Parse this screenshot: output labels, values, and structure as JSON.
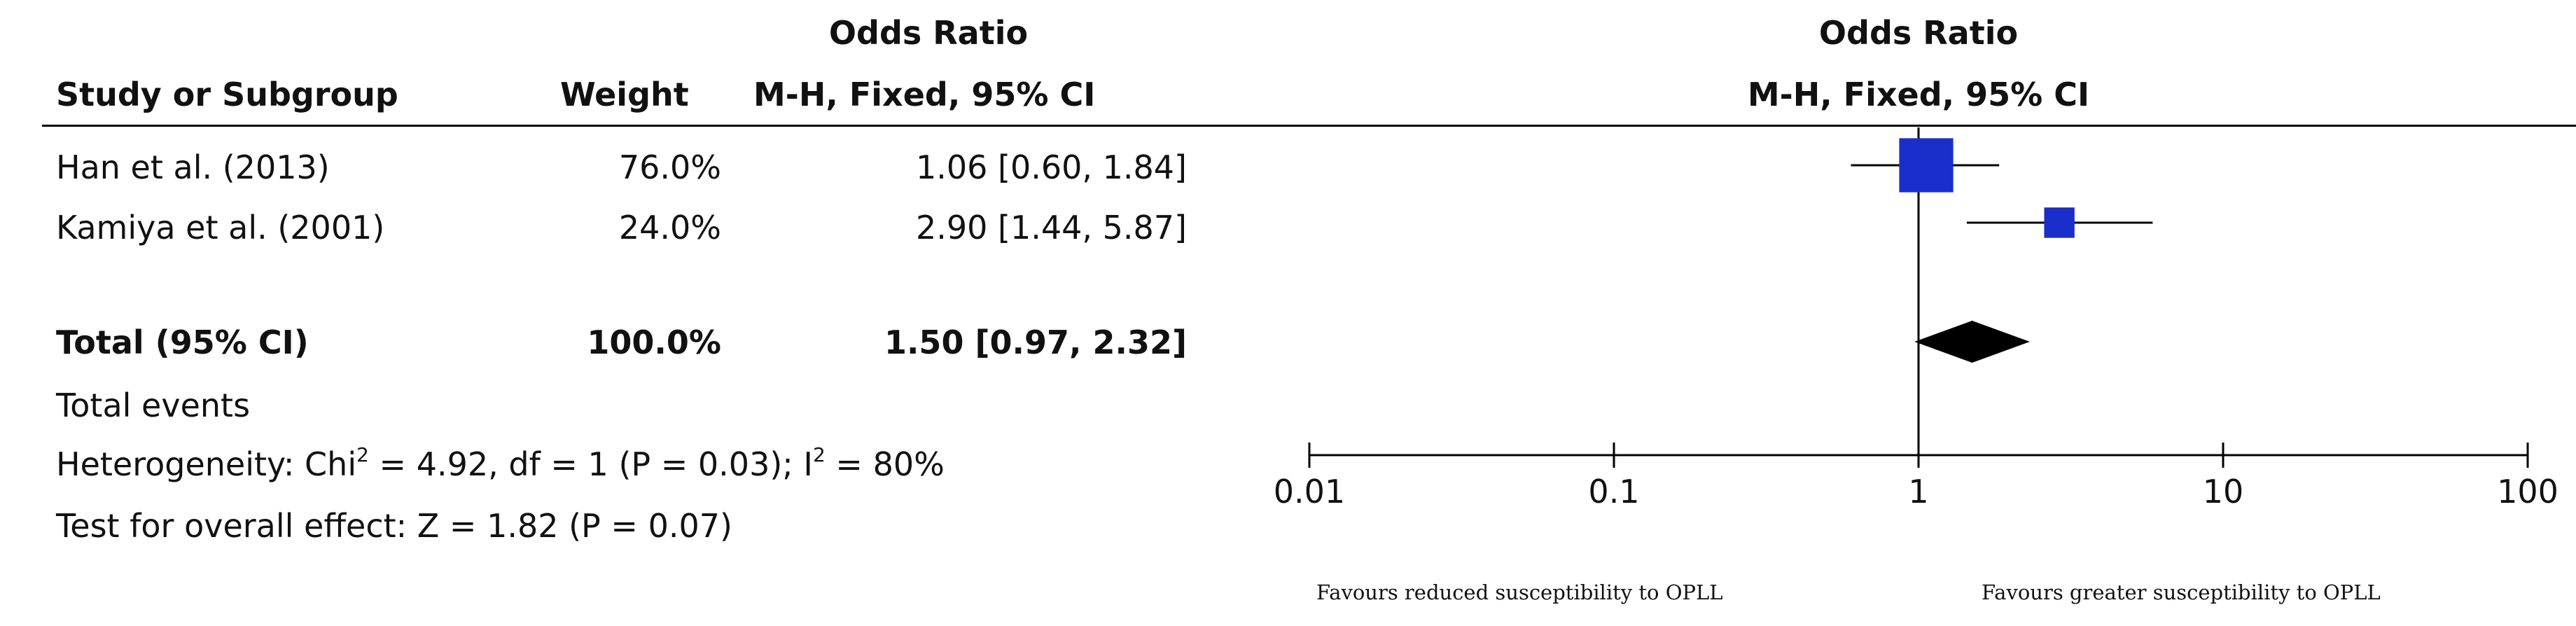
{
  "header": {
    "or_label_left": "Odds Ratio",
    "or_label_right": "Odds Ratio",
    "col_study": "Study or Subgroup",
    "col_weight": "Weight",
    "col_method_left": "M-H, Fixed, 95% CI",
    "col_method_right": "M-H, Fixed, 95% CI"
  },
  "studies": [
    {
      "name": "Han et al. (2013)",
      "weight": "76.0%",
      "ci_text": "1.06 [0.60, 1.84]"
    },
    {
      "name": "Kamiya et al. (2001)",
      "weight": "24.0%",
      "ci_text": "2.90 [1.44, 5.87]"
    }
  ],
  "total": {
    "label": "Total (95% CI)",
    "weight": "100.0%",
    "ci_text": "1.50 [0.97, 2.32]"
  },
  "footer": {
    "total_events": "Total events",
    "heterogeneity_prefix": "Heterogeneity: Chi",
    "heterogeneity_mid": " = 4.92, df = 1 (P = 0.03); I",
    "heterogeneity_suffix": " = 80%",
    "superscript": "2",
    "overall_effect": "Test for overall effect: Z = 1.82 (P = 0.07)"
  },
  "axis_notes": {
    "left": "Favours reduced susceptibility to OPLL",
    "right": "Favours greater susceptibility to OPLL"
  },
  "chart_data": {
    "type": "forest",
    "scale": "log",
    "xlim": [
      0.01,
      100
    ],
    "ticks": [
      0.01,
      0.1,
      1,
      10,
      100
    ],
    "tick_labels": [
      "0.01",
      "0.1",
      "1",
      "10",
      "100"
    ],
    "null_value": 1,
    "marker_color": "#1a2ecc",
    "studies": [
      {
        "name": "Han et al. (2013)",
        "or": 1.06,
        "lower": 0.6,
        "upper": 1.84,
        "weight": 76.0
      },
      {
        "name": "Kamiya et al. (2001)",
        "or": 2.9,
        "lower": 1.44,
        "upper": 5.87,
        "weight": 24.0
      }
    ],
    "pooled": {
      "or": 1.5,
      "lower": 0.97,
      "upper": 2.32
    }
  }
}
